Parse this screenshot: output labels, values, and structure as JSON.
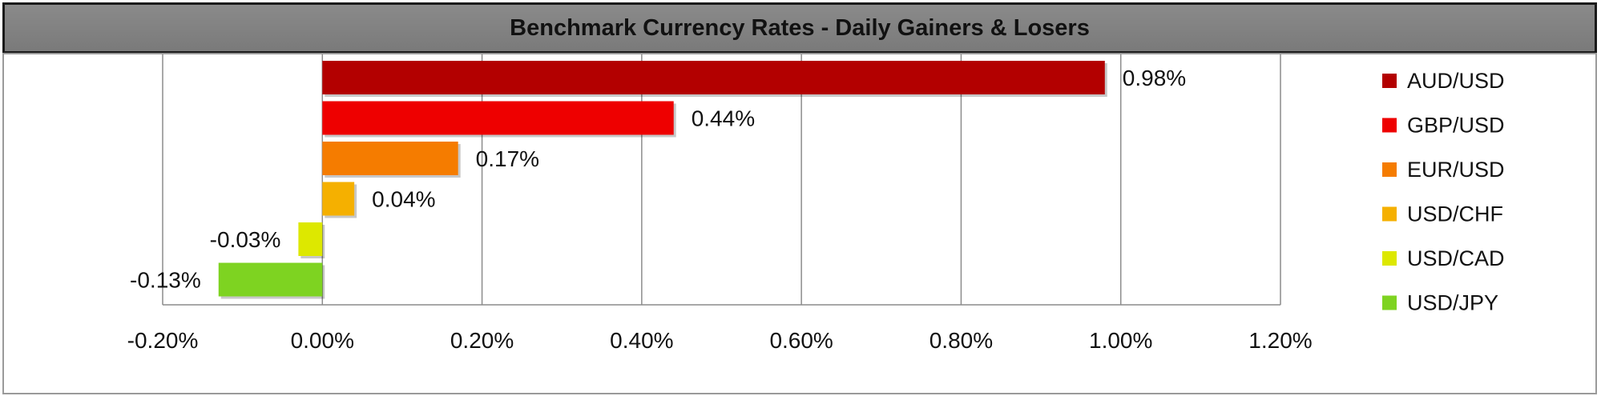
{
  "chart_data": {
    "type": "bar",
    "orientation": "horizontal",
    "title": "Benchmark Currency Rates - Daily Gainers & Losers",
    "categories": [
      "AUD/USD",
      "GBP/USD",
      "EUR/USD",
      "USD/CHF",
      "USD/CAD",
      "USD/JPY"
    ],
    "values": [
      0.98,
      0.44,
      0.17,
      0.04,
      -0.03,
      -0.13
    ],
    "value_labels": [
      "0.98%",
      "0.44%",
      "0.17%",
      "0.04%",
      "-0.03%",
      "-0.13%"
    ],
    "colors": [
      "#b30000",
      "#ee0000",
      "#f57c00",
      "#f5b000",
      "#dde800",
      "#7ed321"
    ],
    "xlim": [
      -0.2,
      1.2
    ],
    "x_ticks": [
      -0.2,
      0,
      0.2,
      0.4,
      0.6,
      0.8,
      1.0,
      1.2
    ],
    "x_tick_labels": [
      "-0.20%",
      "0.00%",
      "0.20%",
      "0.40%",
      "0.60%",
      "0.80%",
      "1.00%",
      "1.20%"
    ],
    "grid": "vertical",
    "legend": {
      "placement": "right",
      "entries": [
        "AUD/USD",
        "GBP/USD",
        "EUR/USD",
        "USD/CHF",
        "USD/CAD",
        "USD/JPY"
      ]
    },
    "xlabel": "",
    "ylabel": ""
  }
}
